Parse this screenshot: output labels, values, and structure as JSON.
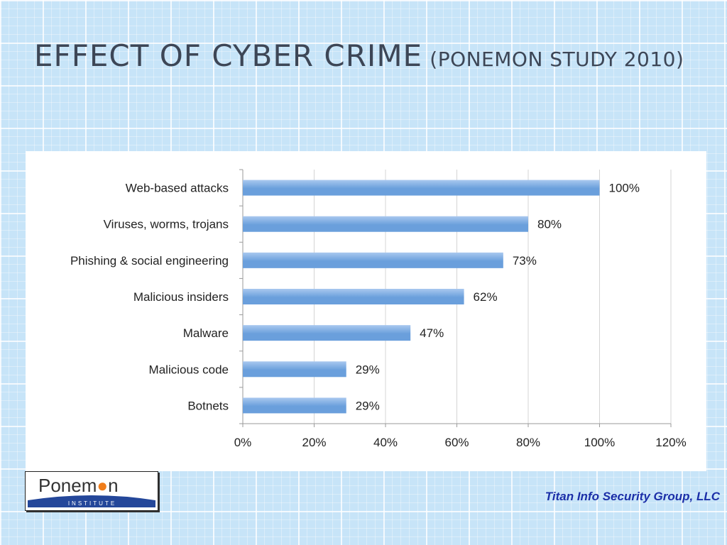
{
  "slide": {
    "title_main": "EFFECT OF CYBER CRIME",
    "title_sub": "(PONEMON STUDY 2010)",
    "footer": "Titan Info Security Group, LLC",
    "logo": {
      "name": "Ponemon",
      "tagline": "INSTITUTE"
    }
  },
  "colors": {
    "bar": "#6a9fdc",
    "bar_highlight": "#a9c8ef",
    "title": "#3d4656",
    "footer": "#1b2fa8",
    "logo_dot": "#f07d1a",
    "logo_band": "#24479a"
  },
  "chart_data": {
    "type": "bar",
    "orientation": "horizontal",
    "categories": [
      "Web-based attacks",
      "Viruses, worms, trojans",
      "Phishing & social engineering",
      "Malicious insiders",
      "Malware",
      "Malicious code",
      "Botnets"
    ],
    "values": [
      100,
      80,
      73,
      62,
      47,
      29,
      29
    ],
    "value_labels": [
      "100%",
      "80%",
      "73%",
      "62%",
      "47%",
      "29%",
      "29%"
    ],
    "xlim": [
      0,
      120
    ],
    "xticks": [
      0,
      20,
      40,
      60,
      80,
      100,
      120
    ],
    "xtick_labels": [
      "0%",
      "20%",
      "40%",
      "60%",
      "80%",
      "100%",
      "120%"
    ],
    "grid": "vertical",
    "legend": "none"
  }
}
